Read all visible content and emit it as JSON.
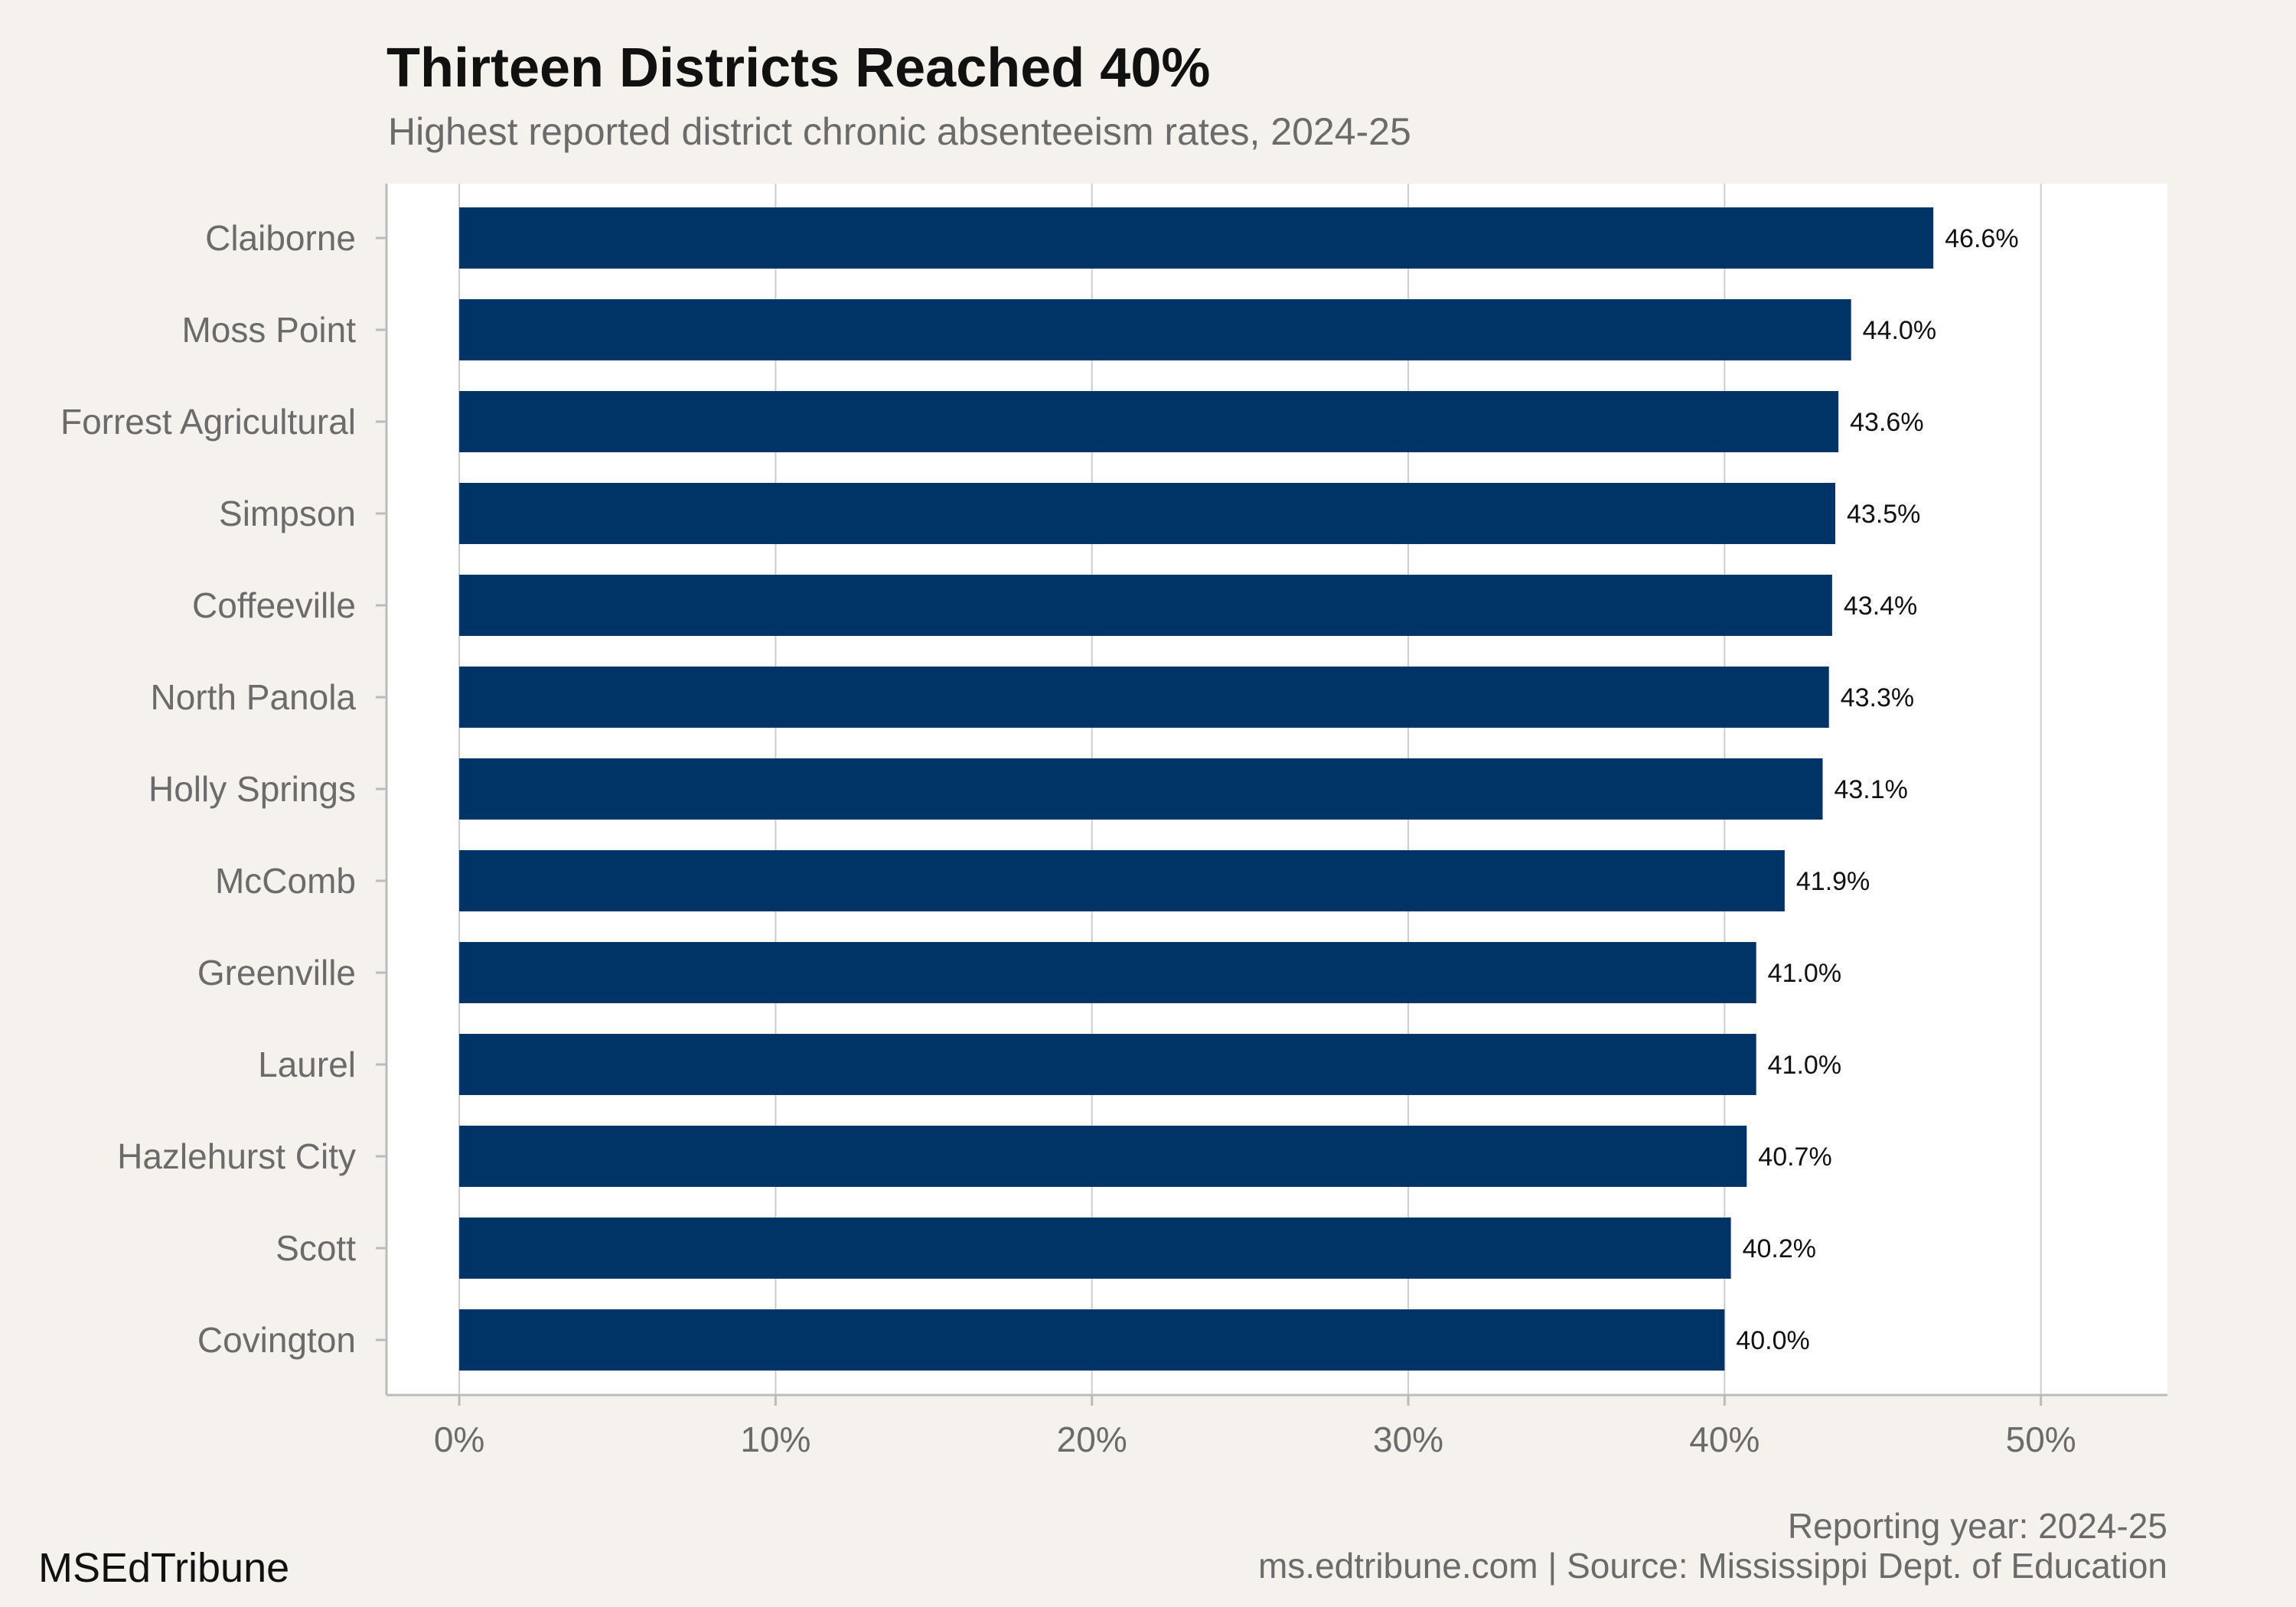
{
  "header": {
    "title": "Thirteen Districts Reached 40%",
    "subtitle": "Highest reported district chronic absenteeism rates, 2024-25"
  },
  "footer": {
    "brand": "MSEdTribune",
    "caption_line1": "Reporting year: 2024-25",
    "caption_line2": "ms.edtribune.com | Source: Mississippi Dept. of Education"
  },
  "colors": {
    "bar": "#003366",
    "plot_background": "#ffffff",
    "page_background": "#f5f2ed",
    "grid": "#cccccc"
  },
  "chart_data": {
    "type": "bar",
    "orientation": "horizontal",
    "title": "Thirteen Districts Reached 40%",
    "subtitle": "Highest reported district chronic absenteeism rates, 2024-25",
    "categories": [
      "Claiborne",
      "Moss Point",
      "Forrest Agricultural",
      "Simpson",
      "Coffeeville",
      "North Panola",
      "Holly Springs",
      "McComb",
      "Greenville",
      "Laurel",
      "Hazlehurst City",
      "Scott",
      "Covington"
    ],
    "values": [
      46.6,
      44.0,
      43.6,
      43.5,
      43.4,
      43.3,
      43.1,
      41.9,
      41.0,
      41.0,
      40.7,
      40.2,
      40.0
    ],
    "value_labels": [
      "46.6%",
      "44.0%",
      "43.6%",
      "43.5%",
      "43.4%",
      "43.3%",
      "43.1%",
      "41.9%",
      "41.0%",
      "41.0%",
      "40.7%",
      "40.2%",
      "40.0%"
    ],
    "xticks": [
      0,
      10,
      20,
      30,
      40,
      50
    ],
    "xtick_labels": [
      "0%",
      "10%",
      "20%",
      "30%",
      "40%",
      "50%"
    ],
    "xlim": [
      -2.3,
      54
    ],
    "xlabel": "",
    "ylabel": "",
    "grid": true,
    "legend": false
  }
}
